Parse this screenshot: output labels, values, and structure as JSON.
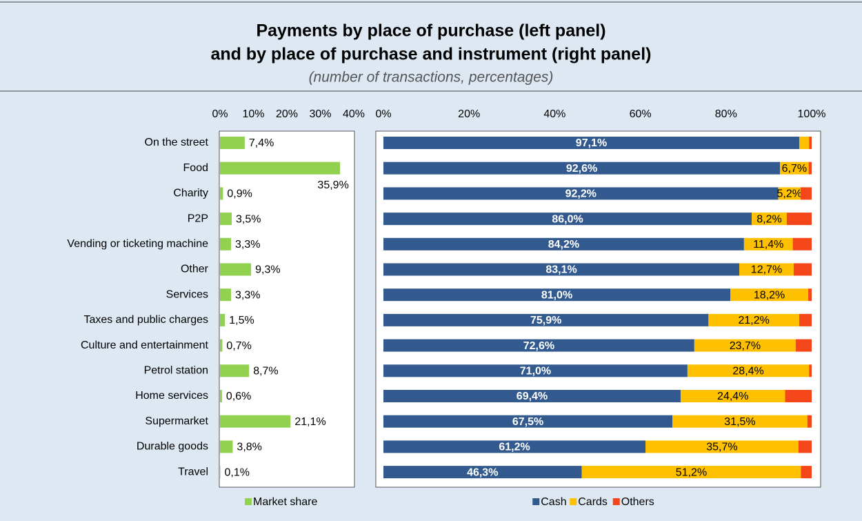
{
  "header": {
    "title": [
      "Payments by place of purchase (left panel)",
      "and by place of purchase and instrument (right panel)"
    ],
    "subtitle": "(number of transactions, percentages)"
  },
  "chart_data": [
    {
      "type": "bar",
      "orientation": "horizontal",
      "categories": [
        "On the street",
        "Food",
        "Charity",
        "P2P",
        "Vending or ticketing machine",
        "Other",
        "Services",
        "Taxes and public charges",
        "Culture and entertainment",
        "Petrol station",
        "Home services",
        "Supermarket",
        "Durable goods",
        "Travel"
      ],
      "series": [
        {
          "name": "Market share",
          "color": "#92d050",
          "values": [
            7.4,
            35.9,
            0.9,
            3.5,
            3.3,
            9.3,
            3.3,
            1.5,
            0.7,
            8.7,
            0.6,
            21.1,
            3.8,
            0.1
          ],
          "value_labels": [
            "7,4%",
            "35,9%",
            "0,9%",
            "3,5%",
            "3,3%",
            "9,3%",
            "3,3%",
            "1,5%",
            "0,7%",
            "8,7%",
            "0,6%",
            "21,1%",
            "3,8%",
            "0,1%"
          ]
        }
      ],
      "xlim": [
        0,
        40
      ],
      "xticks": [
        {
          "value": 0,
          "label": "0%"
        },
        {
          "value": 10,
          "label": "10%"
        },
        {
          "value": 20,
          "label": "20%"
        },
        {
          "value": 30,
          "label": "30%"
        },
        {
          "value": 40,
          "label": "40%"
        }
      ],
      "legend": "bottom"
    },
    {
      "type": "stacked_bar",
      "orientation": "horizontal",
      "series": [
        {
          "name": "Cash",
          "color": "#335a8e",
          "values": [
            97.1,
            92.6,
            92.2,
            86.0,
            84.2,
            83.1,
            81.0,
            75.9,
            72.6,
            71.0,
            69.4,
            67.5,
            61.2,
            46.3
          ],
          "value_labels": [
            "97,1%",
            "92,6%",
            "92,2%",
            "86,0%",
            "84,2%",
            "83,1%",
            "81,0%",
            "75,9%",
            "72,6%",
            "71,0%",
            "69,4%",
            "67,5%",
            "61,2%",
            "46,3%"
          ]
        },
        {
          "name": "Cards",
          "color": "#ffc000",
          "values": [
            2.3,
            6.7,
            5.2,
            8.2,
            11.4,
            12.7,
            18.2,
            21.2,
            23.7,
            28.4,
            24.4,
            31.5,
            35.7,
            51.2
          ],
          "value_labels": [
            null,
            "6,7%",
            "5,2%",
            "8,2%",
            "11,4%",
            "12,7%",
            "18,2%",
            "21,2%",
            "23,7%",
            "28,4%",
            "24,4%",
            "31,5%",
            "35,7%",
            "51,2%"
          ]
        },
        {
          "name": "Others",
          "color": "#f5461a",
          "values": [
            0.6,
            0.7,
            2.6,
            5.8,
            4.4,
            4.2,
            0.8,
            2.9,
            3.7,
            0.6,
            6.2,
            1.0,
            3.1,
            2.5
          ]
        }
      ],
      "xlim": [
        0,
        100
      ],
      "xticks": [
        {
          "value": 0,
          "label": "0%"
        },
        {
          "value": 20,
          "label": "20%"
        },
        {
          "value": 40,
          "label": "40%"
        },
        {
          "value": 60,
          "label": "60%"
        },
        {
          "value": 80,
          "label": "80%"
        },
        {
          "value": 100,
          "label": "100%"
        }
      ],
      "legend": "bottom"
    }
  ]
}
